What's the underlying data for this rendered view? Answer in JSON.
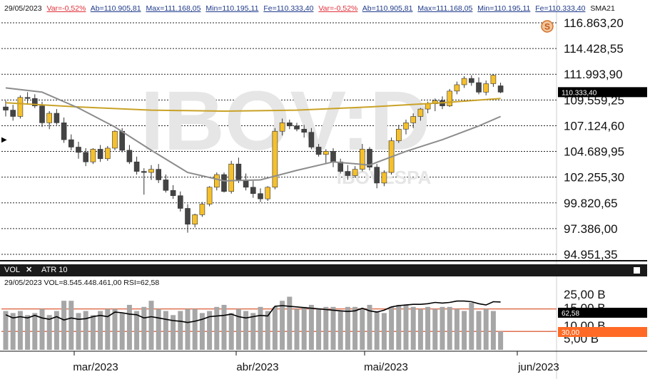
{
  "header": {
    "date": "29/05/2023",
    "var": "Var=-0,52%",
    "open": "Ab=110.905,81",
    "max": "Max=111.168,05",
    "min": "Min=110.195,11",
    "close": "Fe=110.333,40",
    "var2": "Var=-0,52%",
    "open2": "Ab=110.905,81",
    "max2": "Max=111.168,05",
    "min2": "Min=110.195,11",
    "close2": "Fe=110.333,40",
    "sma": "SMA21"
  },
  "watermark": {
    "ticker": "IBOV:D",
    "exchange": "IBOVESPA"
  },
  "price_axis": {
    "labels": [
      "116.863,20",
      "114.428,55",
      "111.993,90",
      "109.559,25",
      "107.124,60",
      "104.689,95",
      "102.255,30",
      "99.820,65",
      "97.386,00",
      "94.951,35"
    ],
    "last_price": "110.333,40"
  },
  "icons": {
    "s_badge": "S",
    "arrow": "▶"
  },
  "colors": {
    "up": "#f5c02c",
    "down": "#444444",
    "sma_long": "#c9a227",
    "sma_short": "#8c8c8c",
    "rsi_box": "#ff6a26"
  },
  "subpanel": {
    "tab_vol": "VOL",
    "close_icon": "✕",
    "tab_atr": "ATR 10",
    "info": "29/05/2023  VOL=8.545.448.461,00  RSI=62,58",
    "axis_labels": [
      "25,00 B",
      "15,00 B",
      "10,00 B",
      "5,00 B"
    ],
    "rsi_value": "62,58",
    "rsi_level": "30,00"
  },
  "x_axis": {
    "labels": [
      "mar/2023",
      "abr/2023",
      "mai/2023",
      "jun/2023"
    ]
  },
  "chart_data": {
    "type": "candlestick",
    "y_range": [
      94951.35,
      116863.2
    ],
    "candles": [
      [
        108900,
        109500,
        108000,
        108600
      ],
      [
        108600,
        109100,
        107600,
        108000
      ],
      [
        108000,
        110000,
        107800,
        109800
      ],
      [
        109800,
        110300,
        109200,
        109700
      ],
      [
        109700,
        110100,
        108800,
        109000
      ],
      [
        109000,
        109400,
        107000,
        107400
      ],
      [
        107400,
        108500,
        106800,
        108300
      ],
      [
        108300,
        108700,
        107200,
        107400
      ],
      [
        107400,
        107900,
        105500,
        105800
      ],
      [
        105800,
        106300,
        104800,
        105100
      ],
      [
        105100,
        105600,
        104000,
        104600
      ],
      [
        104600,
        105000,
        103300,
        103700
      ],
      [
        103700,
        105000,
        103500,
        104900
      ],
      [
        104900,
        105300,
        103700,
        104000
      ],
      [
        104000,
        105200,
        103800,
        105000
      ],
      [
        105000,
        106700,
        104800,
        106600
      ],
      [
        106600,
        106900,
        104600,
        104800
      ],
      [
        104800,
        105300,
        103500,
        103700
      ],
      [
        103700,
        104200,
        102500,
        102800
      ],
      [
        102800,
        103100,
        100600,
        102700
      ],
      [
        102700,
        103400,
        102000,
        103000
      ],
      [
        103000,
        103500,
        101700,
        102000
      ],
      [
        102000,
        102500,
        100800,
        101000
      ],
      [
        101000,
        101500,
        100200,
        100500
      ],
      [
        100500,
        100900,
        99000,
        99300
      ],
      [
        99300,
        99700,
        97000,
        97800
      ],
      [
        97800,
        98800,
        97500,
        98700
      ],
      [
        98700,
        99900,
        98500,
        99700
      ],
      [
        99700,
        101400,
        99500,
        101300
      ],
      [
        101300,
        102700,
        101000,
        102500
      ],
      [
        102500,
        102700,
        100800,
        100900
      ],
      [
        100900,
        103800,
        100700,
        103500
      ],
      [
        103500,
        104100,
        101700,
        102000
      ],
      [
        102000,
        102600,
        101000,
        101300
      ],
      [
        101300,
        101900,
        100300,
        100700
      ],
      [
        100700,
        101200,
        99900,
        100200
      ],
      [
        100200,
        101400,
        100000,
        101300
      ],
      [
        101300,
        106900,
        101100,
        106600
      ],
      [
        106600,
        107800,
        106200,
        107400
      ],
      [
        107400,
        107700,
        106800,
        107100
      ],
      [
        107100,
        107400,
        106600,
        106800
      ],
      [
        106800,
        107200,
        106000,
        106500
      ],
      [
        106500,
        106900,
        104900,
        105100
      ],
      [
        105100,
        105400,
        104200,
        104400
      ],
      [
        104400,
        104900,
        103500,
        104700
      ],
      [
        104700,
        105000,
        103200,
        103700
      ],
      [
        103700,
        104000,
        102600,
        102800
      ],
      [
        102800,
        103400,
        102000,
        102400
      ],
      [
        102400,
        103300,
        102200,
        103000
      ],
      [
        103000,
        105400,
        102800,
        104900
      ],
      [
        104900,
        105100,
        102900,
        103200
      ],
      [
        103200,
        103500,
        101200,
        101700
      ],
      [
        101700,
        102900,
        101400,
        102700
      ],
      [
        102700,
        106000,
        102500,
        105700
      ],
      [
        105700,
        107200,
        105500,
        106800
      ],
      [
        106800,
        107700,
        106300,
        107400
      ],
      [
        107400,
        108300,
        106900,
        108000
      ],
      [
        108000,
        108800,
        107600,
        108700
      ],
      [
        108700,
        109400,
        108300,
        109200
      ],
      [
        109200,
        109700,
        108500,
        109500
      ],
      [
        109500,
        109900,
        108700,
        109000
      ],
      [
        109000,
        110600,
        108900,
        110400
      ],
      [
        110400,
        111300,
        110100,
        111000
      ],
      [
        111000,
        111800,
        110700,
        111600
      ],
      [
        111600,
        111900,
        110900,
        111200
      ],
      [
        111200,
        111700,
        110100,
        110300
      ],
      [
        110300,
        111400,
        110000,
        111100
      ],
      [
        111100,
        112000,
        110800,
        111900
      ],
      [
        110900,
        111200,
        110200,
        110300
      ]
    ],
    "sma_long": [
      [
        0,
        109300
      ],
      [
        10,
        108900
      ],
      [
        20,
        108600
      ],
      [
        30,
        108500
      ],
      [
        40,
        108600
      ],
      [
        50,
        108900
      ],
      [
        60,
        109300
      ],
      [
        68,
        109700
      ]
    ],
    "sma_short": [
      [
        0,
        110700
      ],
      [
        5,
        110300
      ],
      [
        10,
        108800
      ],
      [
        15,
        107000
      ],
      [
        20,
        104800
      ],
      [
        25,
        102700
      ],
      [
        30,
        101900
      ],
      [
        35,
        102000
      ],
      [
        40,
        102900
      ],
      [
        45,
        103700
      ],
      [
        50,
        103400
      ],
      [
        55,
        104700
      ],
      [
        60,
        105800
      ],
      [
        65,
        107100
      ],
      [
        68,
        108000
      ]
    ],
    "volume_range": [
      0,
      30
    ],
    "volume": [
      19,
      18,
      19,
      17,
      18,
      20,
      17,
      19,
      24,
      24,
      18,
      19,
      17,
      19,
      20,
      20,
      18,
      22,
      19,
      21,
      24,
      20,
      19,
      17,
      19,
      20,
      20,
      18,
      19,
      21,
      22,
      18,
      20,
      19,
      18,
      21,
      19,
      21,
      24,
      26,
      20,
      21,
      22,
      20,
      21,
      21,
      19,
      21,
      21,
      20,
      22,
      19,
      18,
      21,
      22,
      22,
      21,
      20,
      21,
      20,
      21,
      21,
      20,
      19,
      23,
      19,
      20,
      19,
      9
    ],
    "rsi_range": [
      0,
      100
    ],
    "rsi": [
      43,
      38,
      40,
      38,
      42,
      38,
      36,
      40,
      35,
      38,
      36,
      37,
      40,
      42,
      40,
      47,
      46,
      44,
      43,
      38,
      40,
      38,
      36,
      34,
      33,
      31,
      33,
      36,
      40,
      41,
      42,
      44,
      40,
      38,
      40,
      42,
      41,
      56,
      57,
      56,
      55,
      54,
      53,
      52,
      51,
      50,
      49,
      48,
      49,
      53,
      49,
      47,
      50,
      55,
      57,
      58,
      59,
      59,
      60,
      62,
      61,
      62,
      64,
      64,
      63,
      60,
      58,
      63,
      62.58
    ]
  }
}
